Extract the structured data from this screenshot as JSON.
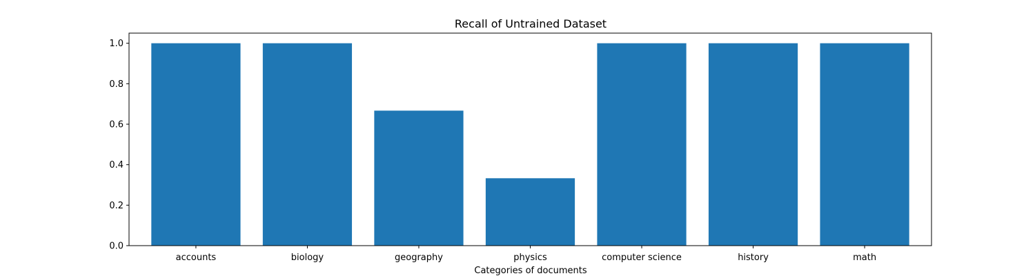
{
  "chart_data": {
    "type": "bar",
    "title": "Recall of Untrained Dataset",
    "xlabel": "Categories of documents",
    "ylabel": "",
    "categories": [
      "accounts",
      "biology",
      "geography",
      "physics",
      "computer science",
      "history",
      "math"
    ],
    "values": [
      1.0,
      1.0,
      0.667,
      0.333,
      1.0,
      1.0,
      1.0
    ],
    "ylim": [
      0,
      1.05
    ],
    "yticks": [
      "0.0",
      "0.2",
      "0.4",
      "0.6",
      "0.8",
      "1.0"
    ],
    "bar_color": "#1f77b4",
    "grid": false,
    "legend": "none"
  }
}
